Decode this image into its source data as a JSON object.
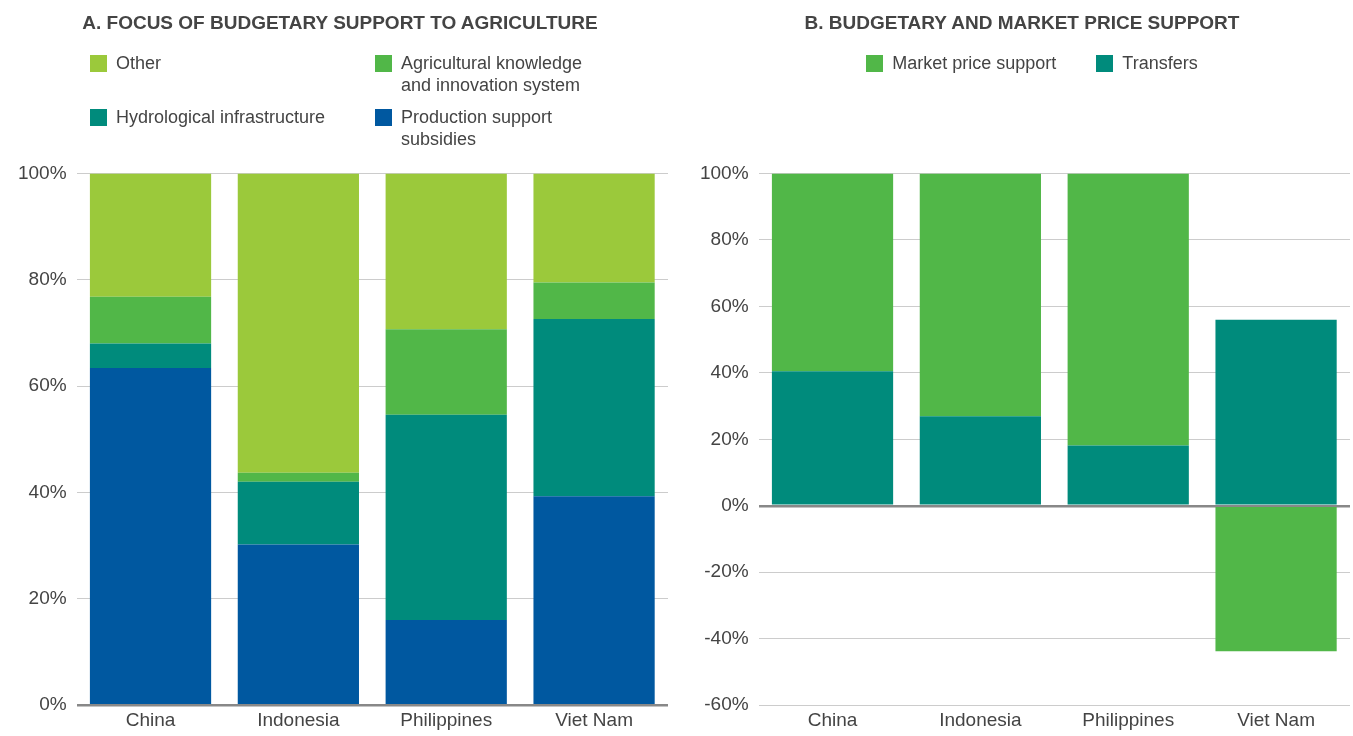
{
  "chart_data": [
    {
      "type": "bar",
      "title": "A. FOCUS OF BUDGETARY SUPPORT TO AGRICULTURE",
      "categories": [
        "China",
        "Indonesia",
        "Philippines",
        "Viet Nam"
      ],
      "stacked": true,
      "series": [
        {
          "name": "Production support subsidies",
          "color": "#0058a0",
          "values": [
            63.4,
            30.2,
            16.0,
            39.3
          ]
        },
        {
          "name": "Hydrological infrastructure",
          "color": "#008b7c",
          "values": [
            4.6,
            11.8,
            38.6,
            33.3
          ]
        },
        {
          "name": "Agricultural knowledge and innovation system",
          "color": "#51b748",
          "values": [
            8.8,
            1.7,
            16.1,
            6.9
          ]
        },
        {
          "name": "Other",
          "color": "#9bc93b",
          "values": [
            23.2,
            56.3,
            29.3,
            20.5
          ]
        }
      ],
      "ylim": [
        0,
        100
      ],
      "yticks": [
        {
          "value": 0,
          "label": "0%"
        },
        {
          "value": 20,
          "label": "20%"
        },
        {
          "value": 40,
          "label": "40%"
        },
        {
          "value": 60,
          "label": "60%"
        },
        {
          "value": 80,
          "label": "80%"
        },
        {
          "value": 100,
          "label": "100%"
        }
      ],
      "grid": "y",
      "legend": "top left"
    },
    {
      "type": "bar",
      "title": "B. BUDGETARY AND MARKET PRICE SUPPORT",
      "categories": [
        "China",
        "Indonesia",
        "Philippines",
        "Viet Nam"
      ],
      "stacked": true,
      "series": [
        {
          "name": "Transfers",
          "color": "#008b7c",
          "values": [
            40.5,
            26.9,
            18.1,
            56.0
          ]
        },
        {
          "name": "Market price support",
          "color": "#51b748",
          "values": [
            59.5,
            73.1,
            81.9,
            -43.8
          ]
        }
      ],
      "ylim": [
        -60,
        100
      ],
      "yticks": [
        {
          "value": -60,
          "label": "-60%"
        },
        {
          "value": -40,
          "label": "-40%"
        },
        {
          "value": -20,
          "label": "-20%"
        },
        {
          "value": 0,
          "label": "0%"
        },
        {
          "value": 20,
          "label": "20%"
        },
        {
          "value": 40,
          "label": "40%"
        },
        {
          "value": 60,
          "label": "60%"
        },
        {
          "value": 80,
          "label": "80%"
        },
        {
          "value": 100,
          "label": "100%"
        }
      ],
      "grid": "y",
      "legend": "top"
    }
  ]
}
